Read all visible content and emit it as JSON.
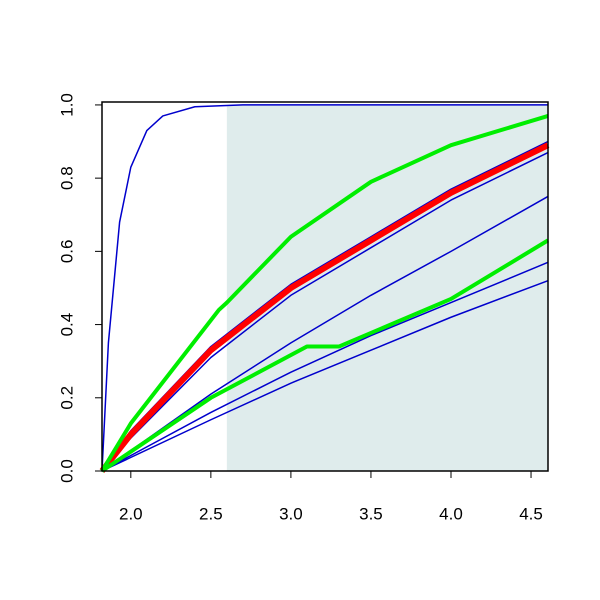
{
  "chart_data": {
    "type": "line",
    "xlim": [
      1.82,
      4.606
    ],
    "ylim": [
      0,
      1.008
    ],
    "xticks": [
      {
        "value": 2,
        "label": "2.0"
      },
      2.5,
      {
        "value": 3,
        "label": "3.0"
      },
      3.5,
      {
        "value": 4,
        "label": "4.0"
      },
      4.5
    ],
    "yticks": [
      {
        "value": 0,
        "label": "0.0"
      },
      0.2,
      0.4,
      0.6,
      0.8,
      {
        "value": 1,
        "label": "1.0"
      }
    ],
    "shade": {
      "x": [
        2.6,
        4.606
      ],
      "y": [
        0,
        1
      ],
      "color": "#dfecec"
    },
    "series": [
      {
        "color": "#0000cc",
        "width": 1.5,
        "x": [
          1.82,
          1.86,
          1.93,
          2.0,
          2.1,
          2.2,
          2.4,
          2.7,
          4.606
        ],
        "values": [
          0,
          0.35,
          0.68,
          0.83,
          0.93,
          0.97,
          0.995,
          1,
          1
        ]
      },
      {
        "color": "#0000cc",
        "width": 1.5,
        "x": [
          1.82,
          2.5,
          3.0,
          3.5,
          4.0,
          4.606
        ],
        "values": [
          0,
          0.14,
          0.24,
          0.33,
          0.42,
          0.52
        ]
      },
      {
        "color": "#0000cc",
        "width": 1.5,
        "x": [
          1.82,
          2.5,
          3.0,
          3.5,
          4.0,
          4.606
        ],
        "values": [
          0,
          0.16,
          0.27,
          0.37,
          0.46,
          0.57
        ]
      },
      {
        "color": "#0000cc",
        "width": 1.5,
        "x": [
          1.82,
          2.5,
          3.0,
          3.5,
          4.0,
          4.606
        ],
        "values": [
          0,
          0.21,
          0.35,
          0.48,
          0.6,
          0.75
        ]
      },
      {
        "color": "#0000cc",
        "width": 1.5,
        "x": [
          1.82,
          2.0,
          2.5,
          3.0,
          3.5,
          4.0,
          4.606
        ],
        "values": [
          0,
          0.09,
          0.31,
          0.48,
          0.61,
          0.74,
          0.87
        ]
      },
      {
        "color": "#0000cc",
        "width": 1.5,
        "x": [
          1.82,
          2.0,
          2.5,
          3.0,
          3.5,
          4.0,
          4.606
        ],
        "values": [
          0,
          0.11,
          0.34,
          0.51,
          0.64,
          0.77,
          0.9
        ]
      },
      {
        "color": "#ff0000",
        "width": 6,
        "x": [
          1.82,
          2.0,
          2.5,
          3.0,
          3.5,
          4.0,
          4.606
        ],
        "values": [
          0,
          0.1,
          0.33,
          0.5,
          0.63,
          0.76,
          0.89
        ]
      },
      {
        "color": "#00ee00",
        "width": 4,
        "x": [
          1.82,
          2.0,
          2.55,
          2.6,
          3.0,
          3.5,
          4.0,
          4.606
        ],
        "values": [
          0,
          0.13,
          0.44,
          0.46,
          0.64,
          0.79,
          0.89,
          0.97
        ]
      },
      {
        "color": "#00ee00",
        "width": 4,
        "x": [
          1.82,
          2.5,
          3.1,
          3.3,
          4.0,
          4.606
        ],
        "values": [
          0,
          0.2,
          0.34,
          0.34,
          0.47,
          0.63
        ]
      }
    ]
  }
}
